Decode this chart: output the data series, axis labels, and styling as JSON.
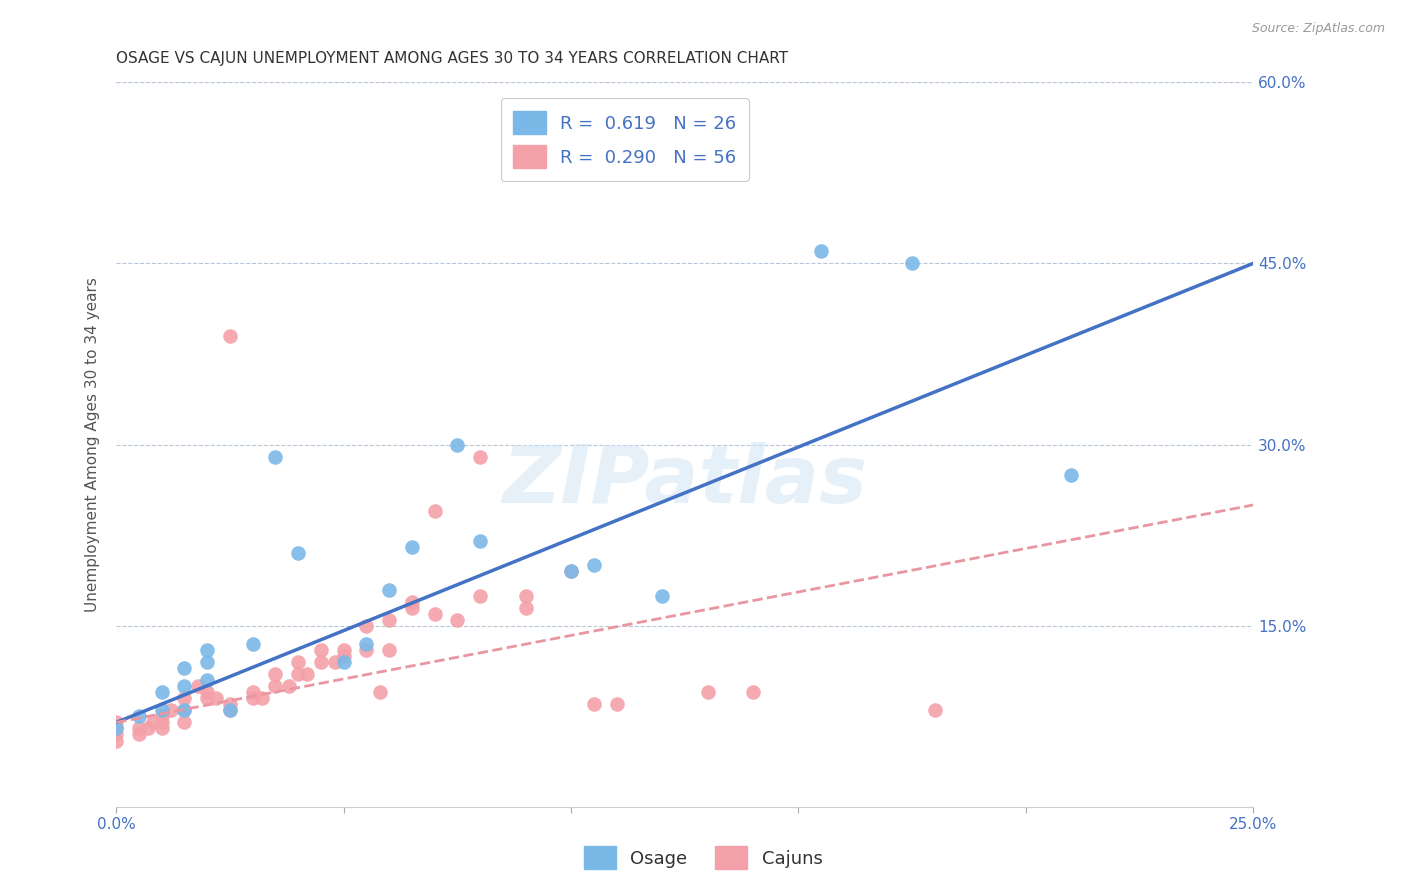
{
  "title": "OSAGE VS CAJUN UNEMPLOYMENT AMONG AGES 30 TO 34 YEARS CORRELATION CHART",
  "source": "Source: ZipAtlas.com",
  "ylabel": "Unemployment Among Ages 30 to 34 years",
  "xlim": [
    0.0,
    0.25
  ],
  "ylim": [
    0.0,
    0.6
  ],
  "xticks": [
    0.0,
    0.05,
    0.1,
    0.15,
    0.2,
    0.25
  ],
  "yticks": [
    0.0,
    0.15,
    0.3,
    0.45,
    0.6
  ],
  "xtick_labels": [
    "0.0%",
    "",
    "",
    "",
    "",
    "25.0%"
  ],
  "ytick_labels_right": [
    "",
    "15.0%",
    "30.0%",
    "45.0%",
    "60.0%"
  ],
  "osage_color": "#7ab8e8",
  "cajun_color": "#f4a0a8",
  "osage_line_color": "#4472c4",
  "cajun_line_color": "#e896a0",
  "osage_R": "0.619",
  "osage_N": "26",
  "cajun_R": "0.290",
  "cajun_N": "56",
  "legend_label_osage": "Osage",
  "legend_label_cajun": "Cajuns",
  "watermark": "ZIPatlas",
  "osage_x": [
    0.0,
    0.005,
    0.01,
    0.01,
    0.015,
    0.015,
    0.015,
    0.02,
    0.02,
    0.02,
    0.025,
    0.03,
    0.035,
    0.04,
    0.05,
    0.055,
    0.06,
    0.065,
    0.075,
    0.08,
    0.1,
    0.105,
    0.12,
    0.155,
    0.175,
    0.21
  ],
  "osage_y": [
    0.065,
    0.075,
    0.08,
    0.095,
    0.08,
    0.1,
    0.115,
    0.105,
    0.12,
    0.13,
    0.08,
    0.135,
    0.29,
    0.21,
    0.12,
    0.135,
    0.18,
    0.215,
    0.3,
    0.22,
    0.195,
    0.2,
    0.175,
    0.46,
    0.45,
    0.275
  ],
  "cajun_x": [
    0.0,
    0.0,
    0.0,
    0.0,
    0.005,
    0.005,
    0.007,
    0.008,
    0.01,
    0.01,
    0.01,
    0.012,
    0.015,
    0.015,
    0.015,
    0.018,
    0.02,
    0.02,
    0.022,
    0.025,
    0.025,
    0.025,
    0.03,
    0.03,
    0.032,
    0.035,
    0.035,
    0.038,
    0.04,
    0.04,
    0.042,
    0.045,
    0.045,
    0.048,
    0.05,
    0.05,
    0.055,
    0.055,
    0.058,
    0.06,
    0.06,
    0.065,
    0.065,
    0.07,
    0.07,
    0.075,
    0.08,
    0.08,
    0.09,
    0.09,
    0.1,
    0.105,
    0.11,
    0.13,
    0.14,
    0.18
  ],
  "cajun_y": [
    0.055,
    0.06,
    0.065,
    0.07,
    0.06,
    0.065,
    0.065,
    0.07,
    0.065,
    0.07,
    0.075,
    0.08,
    0.07,
    0.08,
    0.09,
    0.1,
    0.09,
    0.095,
    0.09,
    0.08,
    0.085,
    0.39,
    0.09,
    0.095,
    0.09,
    0.1,
    0.11,
    0.1,
    0.11,
    0.12,
    0.11,
    0.12,
    0.13,
    0.12,
    0.125,
    0.13,
    0.13,
    0.15,
    0.095,
    0.155,
    0.13,
    0.165,
    0.17,
    0.16,
    0.245,
    0.155,
    0.175,
    0.29,
    0.165,
    0.175,
    0.195,
    0.085,
    0.085,
    0.095,
    0.095,
    0.08
  ],
  "title_fontsize": 11,
  "axis_tick_color": "#4472c4",
  "grid_color": "#b8c8d8",
  "background_color": "#ffffff"
}
